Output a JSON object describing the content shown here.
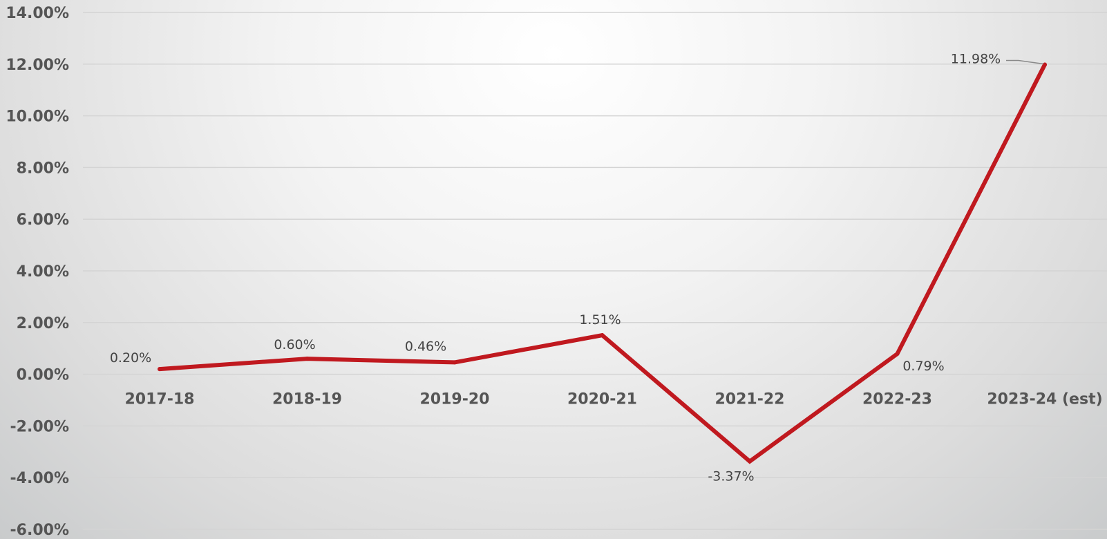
{
  "chart_data": {
    "type": "line",
    "categories": [
      "2017-18",
      "2018-19",
      "2019-20",
      "2020-21",
      "2021-22",
      "2022-23",
      "2023-24 (est)"
    ],
    "series": [
      {
        "values": [
          0.2,
          0.6,
          0.46,
          1.51,
          -3.37,
          0.79,
          11.98
        ],
        "color": "#c0191f"
      }
    ],
    "data_labels": [
      "0.20%",
      "0.60%",
      "0.46%",
      "1.51%",
      "-3.37%",
      "0.79%",
      "11.98%"
    ],
    "y_ticks": [
      "14.00%",
      "12.00%",
      "10.00%",
      "8.00%",
      "6.00%",
      "4.00%",
      "2.00%",
      "0.00%",
      "-2.00%",
      "-4.00%",
      "-6.00%"
    ],
    "ylim": [
      -6,
      14
    ],
    "y_unit": "%",
    "grid": true,
    "legend": "none",
    "title": "",
    "xlabel": "",
    "ylabel": ""
  }
}
